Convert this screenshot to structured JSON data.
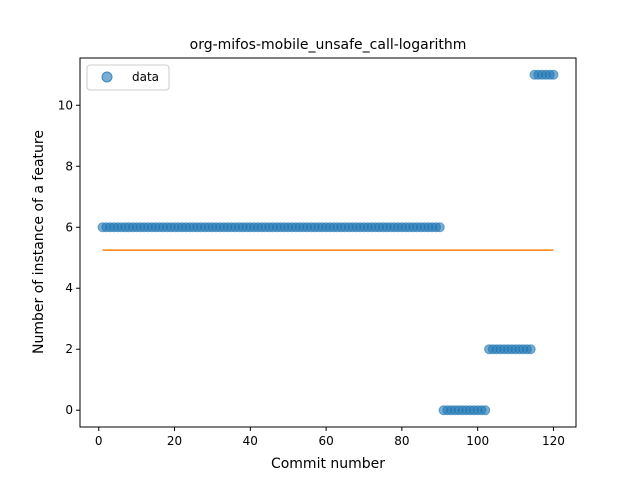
{
  "chart_data": {
    "type": "scatter",
    "title": "org-mifos-mobile_unsafe_call-logarithm",
    "xlabel": "Commit number",
    "ylabel": "Number of instance of a feature",
    "xlim": [
      -4.95,
      125.95
    ],
    "ylim": [
      -0.55,
      11.55
    ],
    "xticks": [
      0,
      20,
      40,
      60,
      80,
      100,
      120
    ],
    "yticks": [
      0,
      2,
      4,
      6,
      8,
      10
    ],
    "grid": false,
    "legend_position": "top-left",
    "series": [
      {
        "name": "data",
        "kind": "scatter",
        "color": "#1f77b4",
        "segments": [
          {
            "x_start": 1,
            "x_end": 90,
            "y": 6
          },
          {
            "x_start": 91,
            "x_end": 102,
            "y": 0
          },
          {
            "x_start": 103,
            "x_end": 114,
            "y": 2
          },
          {
            "x_start": 115,
            "x_end": 120,
            "y": 11
          }
        ]
      },
      {
        "kind": "line",
        "color": "#ff7f0e",
        "points": [
          [
            1,
            5.25
          ],
          [
            120,
            5.25
          ]
        ]
      }
    ]
  }
}
